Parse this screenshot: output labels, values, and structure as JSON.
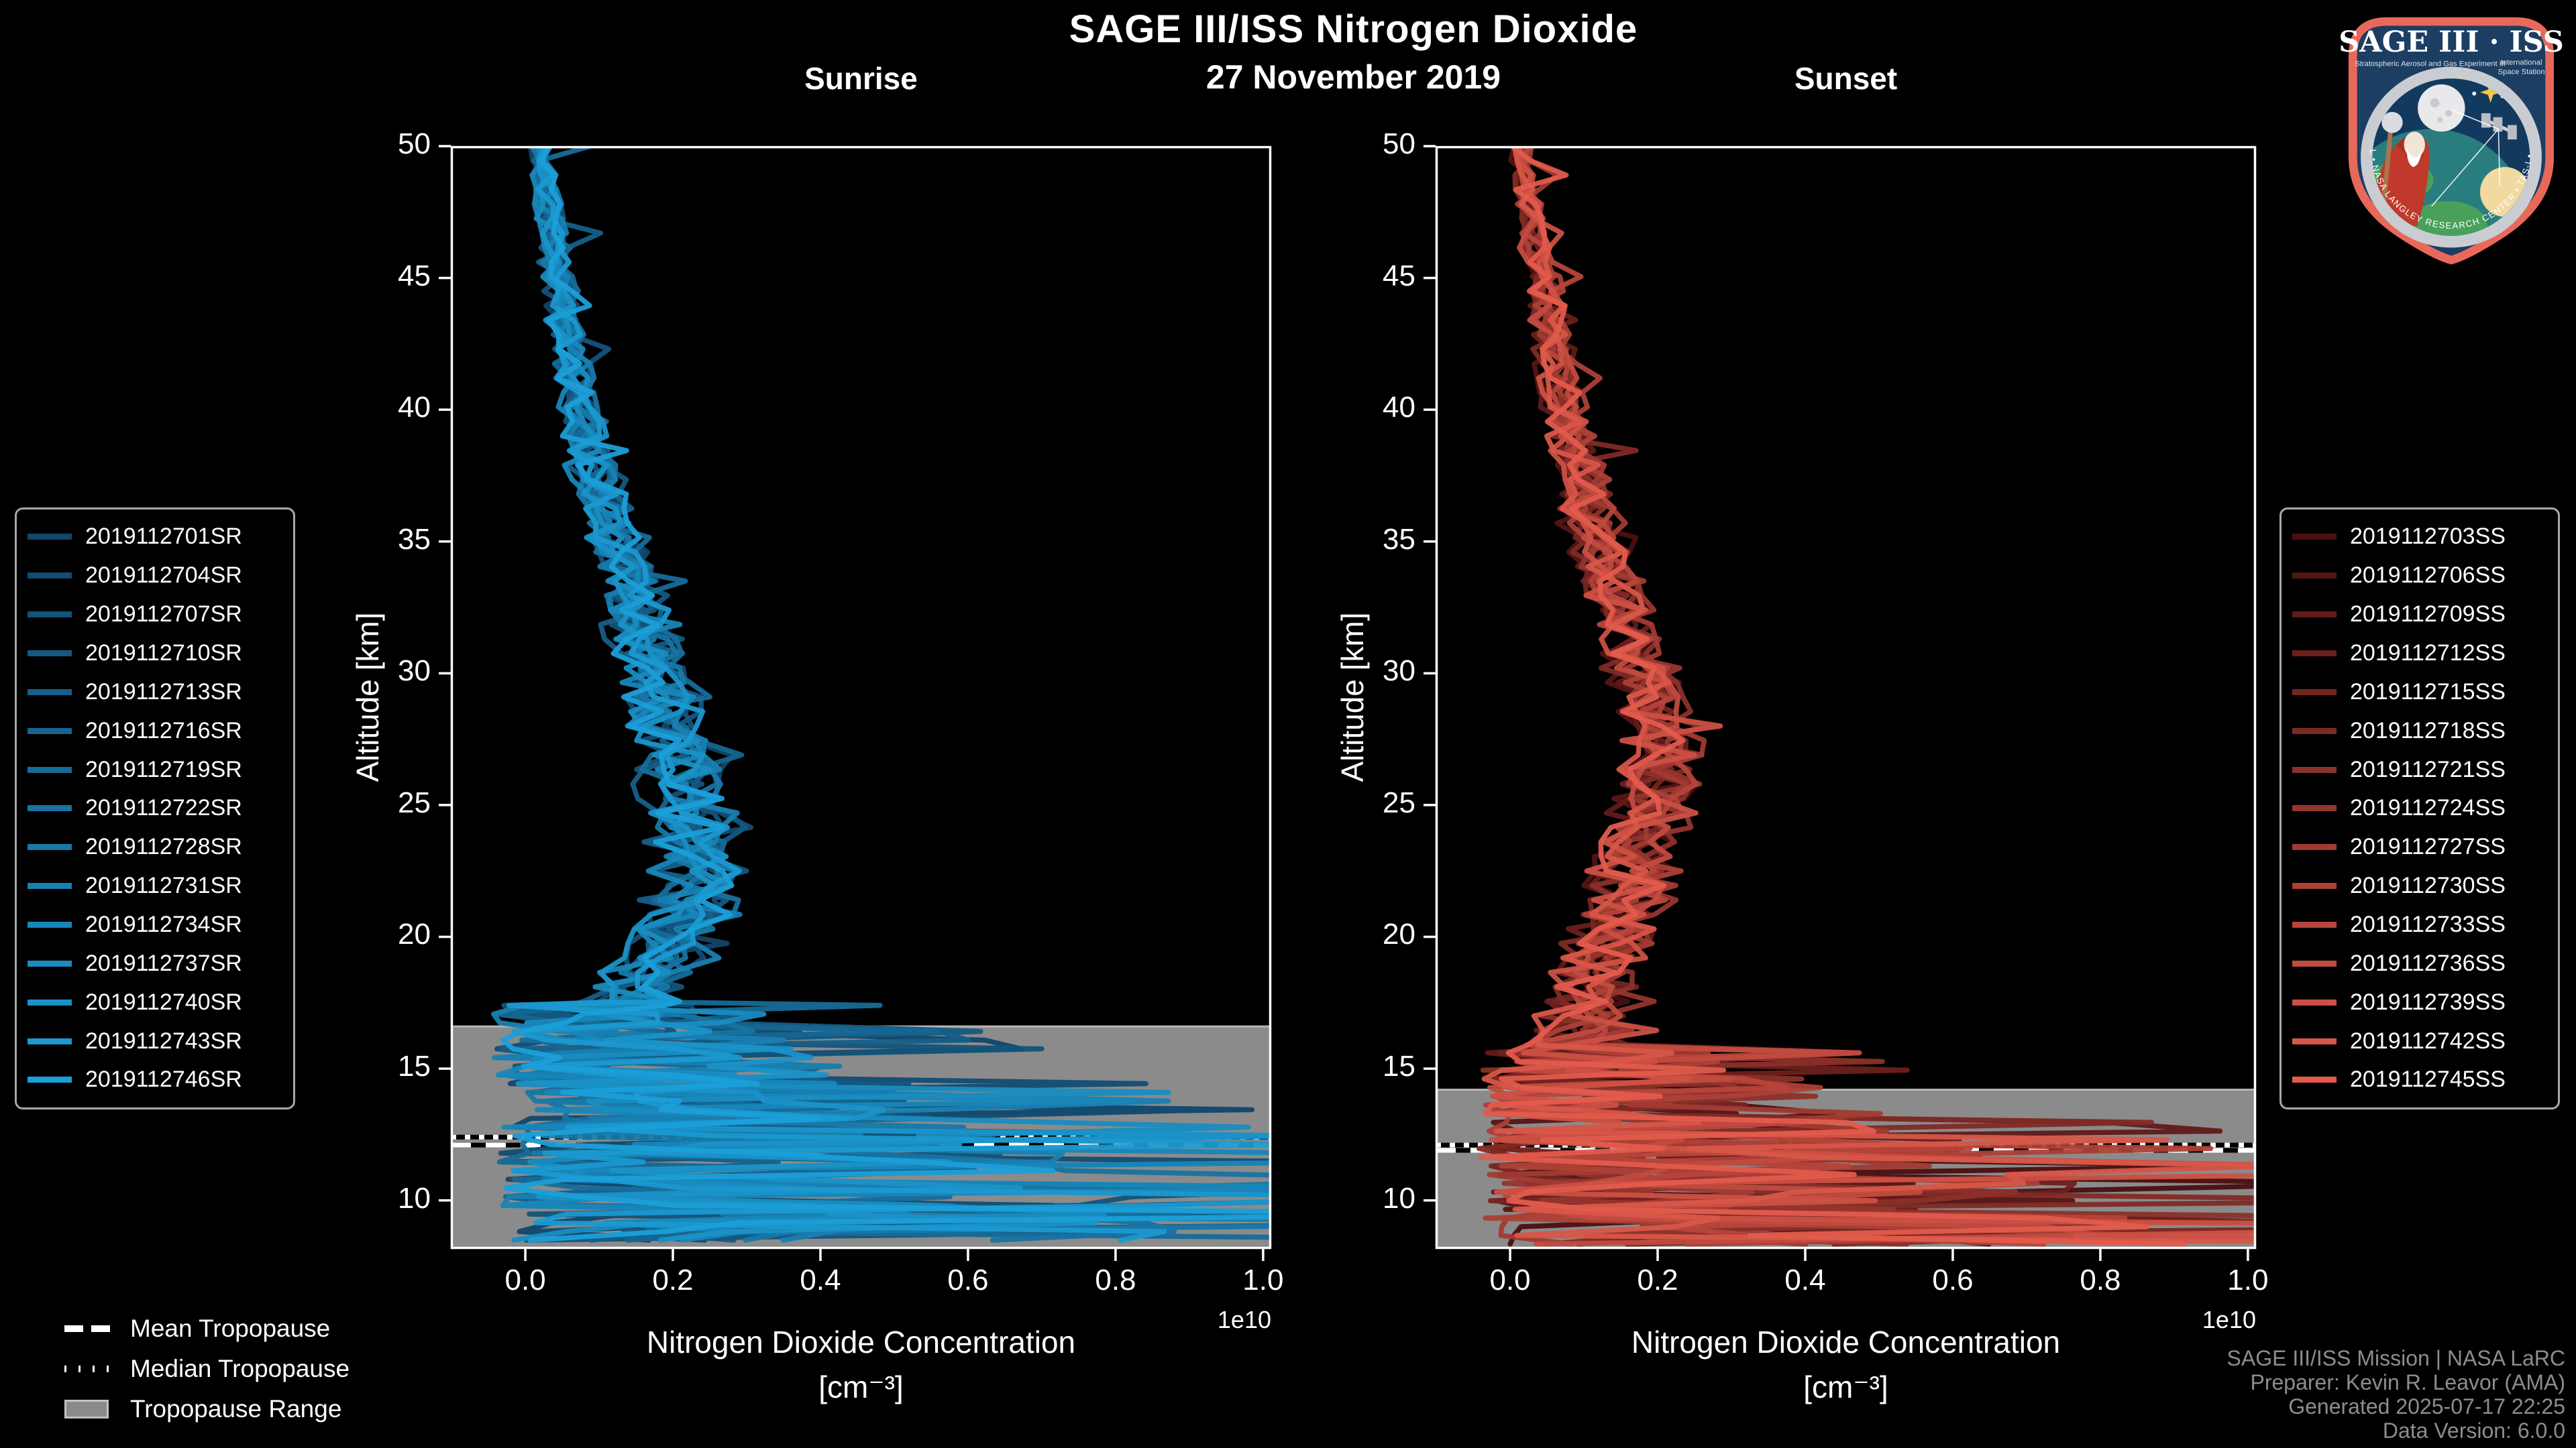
{
  "header": {
    "title": "SAGE III/ISS Nitrogen Dioxide",
    "date": "27 November 2019"
  },
  "tropopause_legend": {
    "mean": "Mean Tropopause",
    "median": "Median Tropopause",
    "range": "Tropopause Range"
  },
  "footer": {
    "lines": [
      "SAGE III/ISS Mission | NASA LaRC",
      "Preparer: Kevin R. Leavor (AMA)",
      "Generated 2025-07-17 22:25",
      "Data Version: 6.0.0"
    ]
  },
  "logo": {
    "title": "SAGE III · ISS",
    "sub1": "Stratospheric Aerosol and Gas Experiment III",
    "sub2a": "International",
    "sub2b": "Space Station",
    "ring_text": "BALL  •  NASA LANGLEY RESEARCH CENTER  •  TAS-I  •  ESA",
    "border_color": "#e8695a",
    "background_color": "#1c3e63"
  },
  "colors": {
    "background": "#000000",
    "frame": "#ffffff",
    "tropopause_range_fill": "#8b8b8b",
    "tropopause_range_edge": "#b5b5b5",
    "footer_text": "#8d8d8d"
  },
  "chart_data": [
    {
      "type": "line",
      "panel": "sunrise",
      "title": "Sunrise",
      "xlabel": "Nitrogen Dioxide Concentration",
      "xlabel_unit": "[cm⁻³]",
      "ylabel": "Altitude [km]",
      "x_offset_label": "1e10",
      "x_ticks": [
        0.0,
        0.2,
        0.4,
        0.6,
        0.8,
        1.0
      ],
      "y_ticks": [
        10,
        15,
        20,
        25,
        30,
        35,
        40,
        45,
        50
      ],
      "xlim": [
        -0.101,
        1.011
      ],
      "ylim": [
        8.16,
        50
      ],
      "grid": false,
      "legend_position": "left-outside",
      "color_start": "#12466a",
      "color_end": "#1b9fd8",
      "series_ids": [
        "2019112701SR",
        "2019112704SR",
        "2019112707SR",
        "2019112710SR",
        "2019112713SR",
        "2019112716SR",
        "2019112719SR",
        "2019112722SR",
        "2019112728SR",
        "2019112731SR",
        "2019112734SR",
        "2019112737SR",
        "2019112740SR",
        "2019112743SR",
        "2019112746SR"
      ],
      "mean_profile": [
        [
          50,
          0.02
        ],
        [
          48,
          0.03
        ],
        [
          46,
          0.04
        ],
        [
          44,
          0.05
        ],
        [
          42,
          0.062
        ],
        [
          40,
          0.075
        ],
        [
          38,
          0.09
        ],
        [
          36,
          0.108
        ],
        [
          34,
          0.13
        ],
        [
          32,
          0.152
        ],
        [
          30,
          0.172
        ],
        [
          28,
          0.19
        ],
        [
          26,
          0.21
        ],
        [
          24,
          0.228
        ],
        [
          23,
          0.232
        ],
        [
          22,
          0.228
        ],
        [
          21,
          0.22
        ],
        [
          20,
          0.21
        ],
        [
          19,
          0.185
        ],
        [
          18,
          0.155
        ],
        [
          17.4,
          0.14
        ]
      ],
      "breakdown_altitude_km": 17.4,
      "tropopause": {
        "mean_km": 12.1,
        "median_km": 12.4,
        "range_top_km": 16.6,
        "range_bottom_km": 8.16
      },
      "units_note": "concentration values in units of 1e10 cm^-3"
    },
    {
      "type": "line",
      "panel": "sunset",
      "title": "Sunset",
      "xlabel": "Nitrogen Dioxide Concentration",
      "xlabel_unit": "[cm⁻³]",
      "ylabel": "Altitude [km]",
      "x_offset_label": "1e10",
      "x_ticks": [
        0.0,
        0.2,
        0.4,
        0.6,
        0.8,
        1.0
      ],
      "y_ticks": [
        10,
        15,
        20,
        25,
        30,
        35,
        40,
        45,
        50
      ],
      "xlim": [
        -0.101,
        1.011
      ],
      "ylim": [
        8.16,
        50
      ],
      "grid": false,
      "legend_position": "right-outside",
      "color_start": "#4a0f10",
      "color_end": "#e25b4c",
      "series_ids": [
        "2019112703SS",
        "2019112706SS",
        "2019112709SS",
        "2019112712SS",
        "2019112715SS",
        "2019112718SS",
        "2019112721SS",
        "2019112724SS",
        "2019112727SS",
        "2019112730SS",
        "2019112733SS",
        "2019112736SS",
        "2019112739SS",
        "2019112742SS",
        "2019112745SS"
      ],
      "mean_profile": [
        [
          50,
          0.015
        ],
        [
          48,
          0.025
        ],
        [
          46,
          0.035
        ],
        [
          44,
          0.05
        ],
        [
          42,
          0.06
        ],
        [
          40,
          0.072
        ],
        [
          38,
          0.088
        ],
        [
          36,
          0.105
        ],
        [
          34,
          0.125
        ],
        [
          32,
          0.15
        ],
        [
          30,
          0.175
        ],
        [
          29,
          0.19
        ],
        [
          28,
          0.2
        ],
        [
          27,
          0.205
        ],
        [
          26,
          0.2
        ],
        [
          25,
          0.19
        ],
        [
          24,
          0.18
        ],
        [
          23,
          0.17
        ],
        [
          22,
          0.16
        ],
        [
          21,
          0.15
        ],
        [
          20,
          0.135
        ],
        [
          19,
          0.12
        ],
        [
          18,
          0.11
        ],
        [
          17,
          0.1
        ],
        [
          16,
          0.09
        ],
        [
          15.6,
          0.085
        ]
      ],
      "breakdown_altitude_km": 15.6,
      "tropopause": {
        "mean_km": 11.9,
        "median_km": 12.1,
        "range_top_km": 14.2,
        "range_bottom_km": 8.16
      },
      "units_note": "concentration values in units of 1e10 cm^-3"
    }
  ]
}
